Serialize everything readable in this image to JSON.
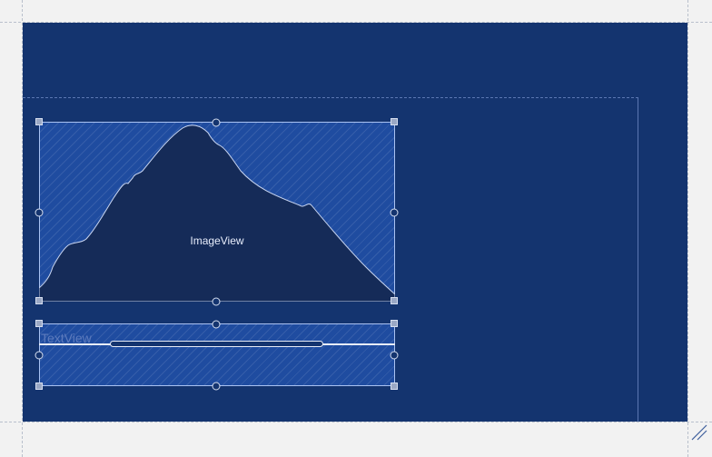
{
  "canvas": {
    "background_color": "#f2f2f2",
    "blueprint_color": "#14346f",
    "widget_fill_color": "#1f4ca0",
    "outline_color": "#a9c2f2"
  },
  "image_view": {
    "label": "ImageView",
    "icon": "mountain-placeholder-icon"
  },
  "text_view": {
    "label": "TextView"
  },
  "corner": {
    "icon": "resize-grip-icon"
  }
}
